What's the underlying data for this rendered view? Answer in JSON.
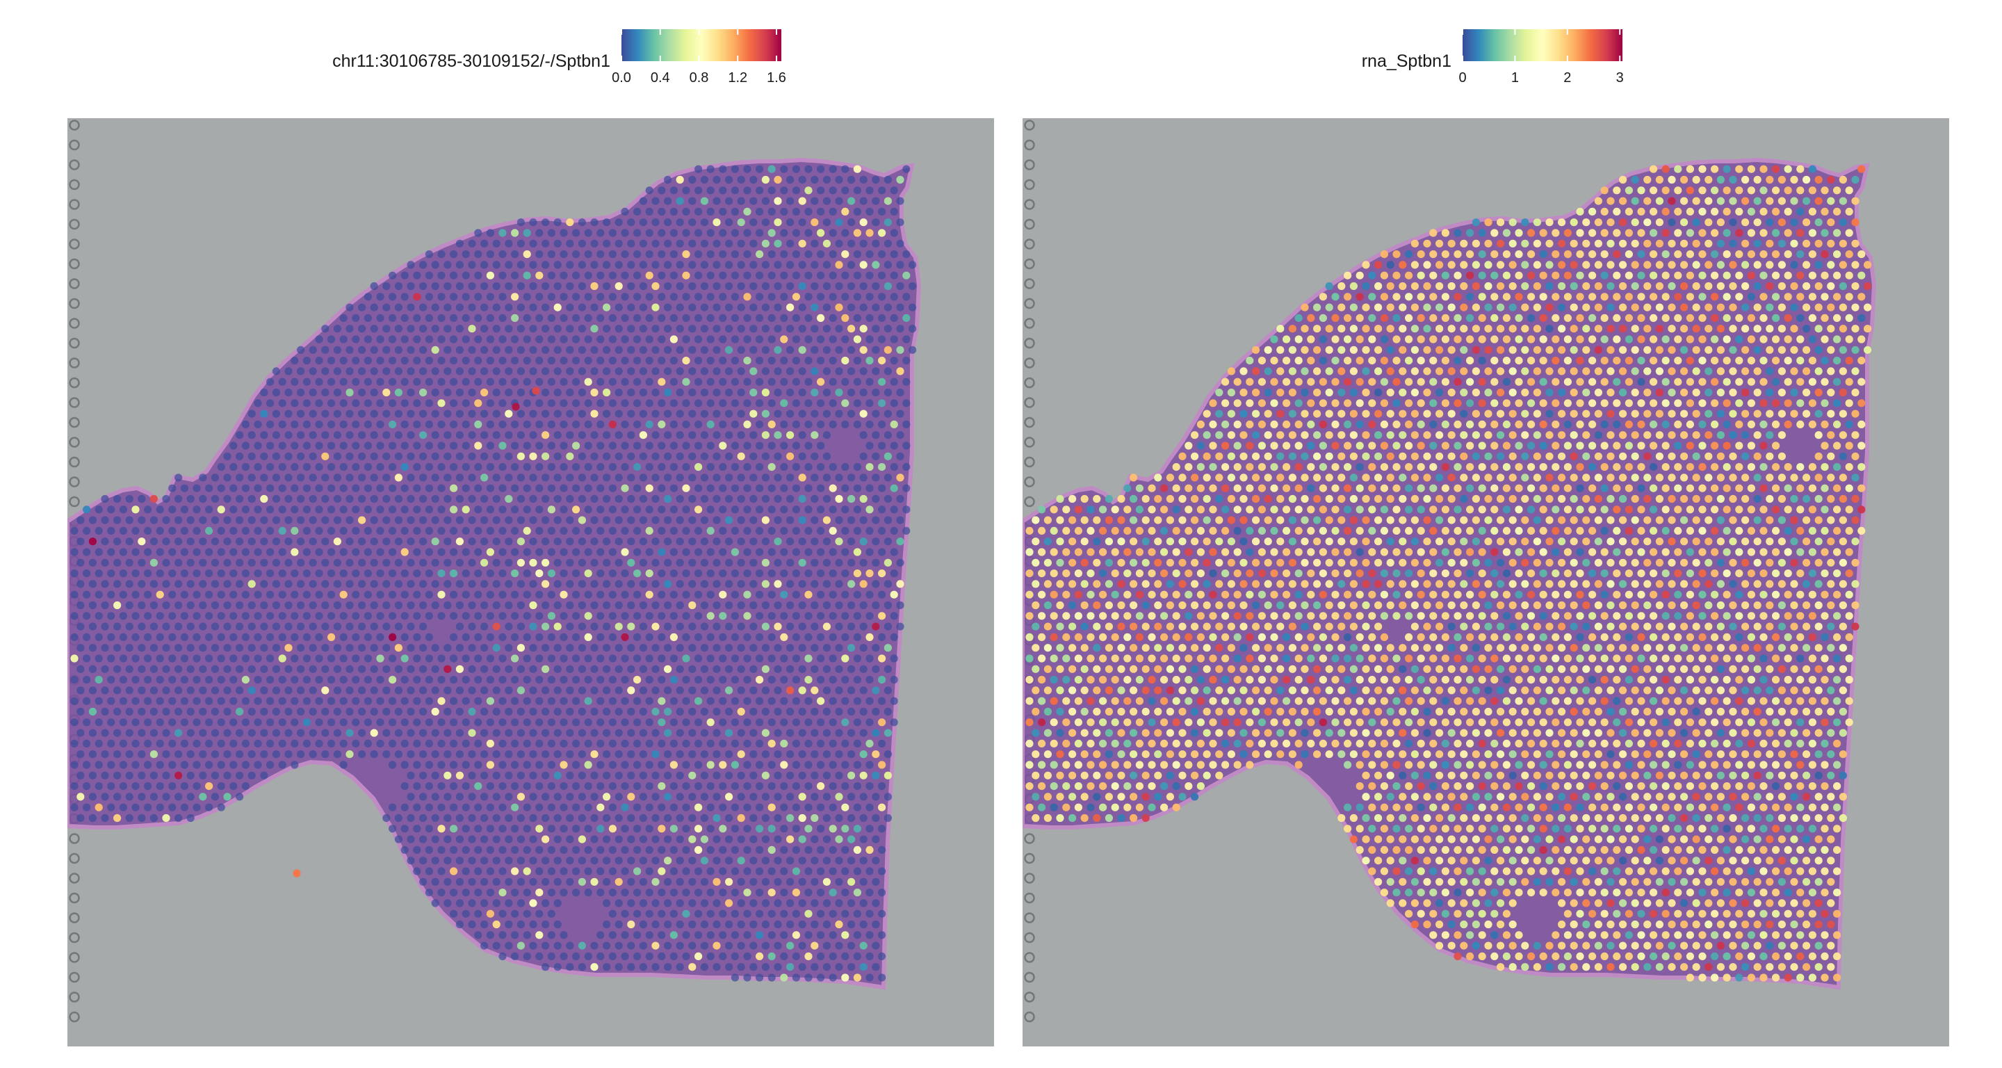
{
  "chart_data": [
    {
      "type": "scatter",
      "subtype": "spatial-transcriptomics-feature-plot",
      "legend": {
        "title": "chr11:30106785-30109152/-/Sptbn1",
        "placement": "top-center",
        "range": [
          0.0,
          1.65
        ],
        "ticks": [
          "0.0",
          "0.4",
          "0.8",
          "1.2",
          "1.6"
        ],
        "tick_values": [
          0.0,
          0.4,
          0.8,
          1.2,
          1.6
        ]
      },
      "colorscale": [
        "#3b4b9a",
        "#3288bd",
        "#66c2a5",
        "#abdda4",
        "#e6f598",
        "#ffffbf",
        "#fee08b",
        "#fdae61",
        "#f46d43",
        "#d53e4f",
        "#9e0142"
      ],
      "spot_distribution": {
        "baseline_value": 0.0,
        "elevated_fraction": 0.12,
        "hotspot_values": [
          1.6,
          1.45,
          1.3
        ]
      },
      "background": "H&E tissue section (mouse brain)",
      "grid": false
    },
    {
      "type": "scatter",
      "subtype": "spatial-transcriptomics-feature-plot",
      "legend": {
        "title": "rna_Sptbn1",
        "placement": "top-center",
        "range": [
          0,
          3.05
        ],
        "ticks": [
          "0",
          "1",
          "2",
          "3"
        ],
        "tick_values": [
          0,
          1,
          2,
          3
        ]
      },
      "colorscale": [
        "#3b4b9a",
        "#3288bd",
        "#66c2a5",
        "#abdda4",
        "#e6f598",
        "#ffffbf",
        "#fee08b",
        "#fdae61",
        "#f46d43",
        "#d53e4f",
        "#9e0142"
      ],
      "spot_distribution": {
        "typical_value": 1.8,
        "low_fraction": 0.12,
        "hotspot_values": [
          3.0,
          2.7
        ]
      },
      "background": "H&E tissue section (mouse brain)",
      "grid": false
    }
  ],
  "colors": {
    "slide_background": "#a6aaab",
    "tissue_fill": "#7d4fa0",
    "tissue_edge": "#c08bc4",
    "panel_background": "#ffffff"
  }
}
